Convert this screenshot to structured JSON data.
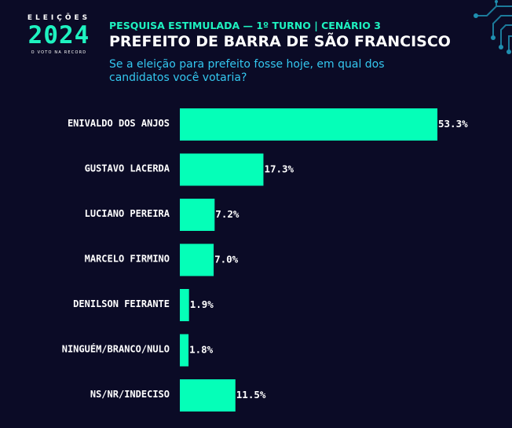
{
  "logo": {
    "top_text": "ELEIÇÕES",
    "year": "2024",
    "tagline": "O VOTO NA RECORD"
  },
  "header": {
    "subtitle": "PESQUISA ESTIMULADA — 1º TURNO | CENÁRIO 3",
    "title": "PREFEITO DE BARRA DE SÃO FRANCISCO",
    "question": "Se a eleição para prefeito fosse hoje, em qual dos candidatos você votaria?"
  },
  "colors": {
    "background": "#0b0b26",
    "bar": "#05ffb8",
    "accent": "#1ef2c0",
    "question": "#34c8f0"
  },
  "chart_data": {
    "type": "bar",
    "orientation": "horizontal",
    "categories": [
      "ENIVALDO DOS ANJOS",
      "GUSTAVO LACERDA",
      "LUCIANO PEREIRA",
      "MARCELO FIRMINO",
      "DENILSON FEIRANTE",
      "NINGUÉM/BRANCO/NULO",
      "NS/NR/INDECISO"
    ],
    "values": [
      53.3,
      17.3,
      7.2,
      7.0,
      1.9,
      1.8,
      11.5
    ],
    "value_labels": [
      "53.3%",
      "17.3%",
      "7.2%",
      "7.0%",
      "1.9%",
      "1.8%",
      "11.5%"
    ],
    "xlim": [
      0,
      53.3
    ],
    "grid": false,
    "legend": "none"
  }
}
